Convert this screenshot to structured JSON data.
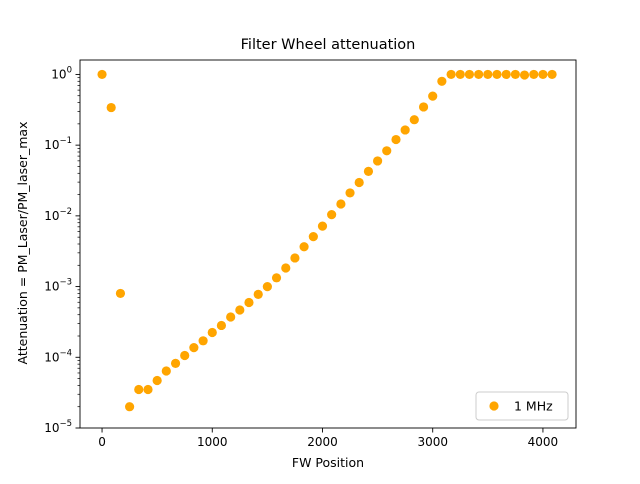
{
  "chart_data": {
    "type": "scatter",
    "title": "Filter Wheel attenuation",
    "xlabel": "FW Position",
    "ylabel": "Attenuation = PM_Laser/PM_laser_max",
    "xlim": [
      -200,
      4300
    ],
    "ylim": [
      1e-05,
      1.6
    ],
    "yscale": "log",
    "x_ticks": [
      0,
      1000,
      2000,
      3000,
      4000
    ],
    "y_ticks": [
      {
        "base": "10",
        "exp": "−5",
        "value": 1e-05
      },
      {
        "base": "10",
        "exp": "−4",
        "value": 0.0001
      },
      {
        "base": "10",
        "exp": "−3",
        "value": 0.001
      },
      {
        "base": "10",
        "exp": "−2",
        "value": 0.01
      },
      {
        "base": "10",
        "exp": "−1",
        "value": 0.1
      },
      {
        "base": "10",
        "exp": "0",
        "value": 1
      }
    ],
    "grid": false,
    "legend_position": "lower-right",
    "series": [
      {
        "name": "1 MHz",
        "color": "#ffa500",
        "x": [
          0,
          83,
          167,
          250,
          333,
          417,
          500,
          583,
          667,
          750,
          833,
          917,
          1000,
          1083,
          1167,
          1250,
          1333,
          1417,
          1500,
          1583,
          1667,
          1750,
          1833,
          1917,
          2000,
          2083,
          2167,
          2250,
          2333,
          2417,
          2500,
          2583,
          2667,
          2750,
          2833,
          2917,
          3000,
          3083,
          3167,
          3250,
          3333,
          3417,
          3500,
          3583,
          3667,
          3750,
          3833,
          3917,
          4000,
          4083
        ],
        "y": [
          1.0,
          0.34,
          0.0008,
          2e-05,
          3.5e-05,
          3.5e-05,
          4.7e-05,
          6.4e-05,
          8.2e-05,
          0.000106,
          0.000137,
          0.000171,
          0.000224,
          0.000282,
          0.000371,
          0.000466,
          0.000596,
          0.000775,
          0.000998,
          0.00133,
          0.00183,
          0.00254,
          0.00366,
          0.00509,
          0.00715,
          0.0104,
          0.0147,
          0.0211,
          0.0296,
          0.0426,
          0.0598,
          0.0832,
          0.12,
          0.164,
          0.229,
          0.347,
          0.493,
          0.8,
          1.0,
          1.0,
          1.0,
          1.0,
          1.0,
          1.0,
          1.0,
          1.0,
          0.98,
          1.0,
          1.0,
          1.0
        ]
      }
    ]
  }
}
